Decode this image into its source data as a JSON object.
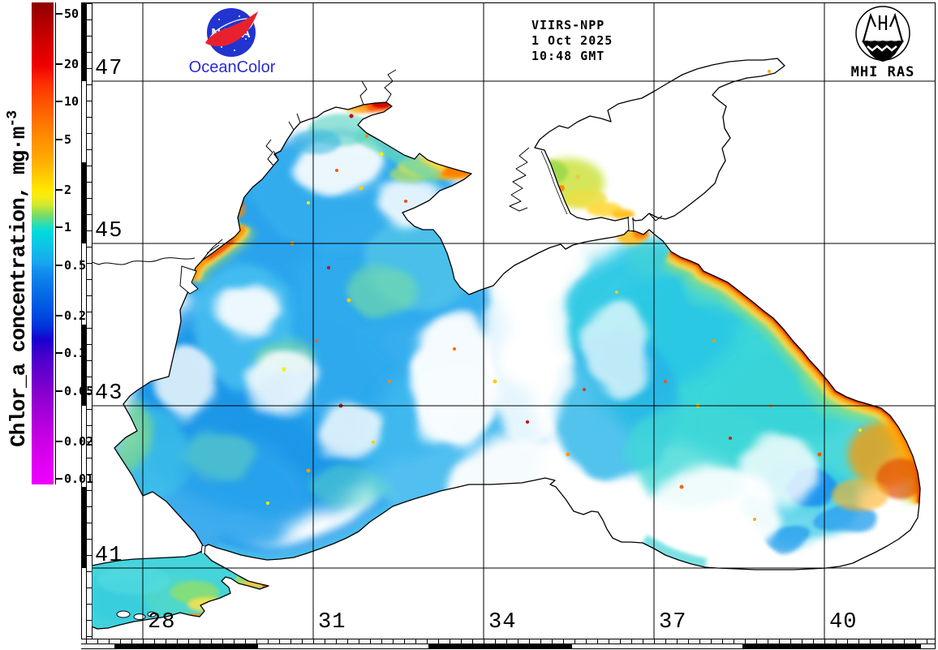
{
  "header": {
    "platform": "VIIRS-NPP",
    "date": "1 Oct 2025",
    "time": "10:48 GMT"
  },
  "branding": {
    "nasa_wordmark": "NASA",
    "oceancolor_label": "OceanColor",
    "mhi_label": "MHI RAS"
  },
  "colorbar": {
    "title": "Chlor_a concentration, mg·m",
    "title_sup": "-3",
    "tick_labels": [
      "50",
      "20",
      "10",
      "5",
      "2",
      "1",
      "0.5",
      "0.2",
      "0.1",
      "0.05",
      "0.02",
      "0.01"
    ]
  },
  "axes": {
    "lat_labels": [
      "47",
      "45",
      "43",
      "41"
    ],
    "lon_labels": [
      "28",
      "31",
      "34",
      "37",
      "40"
    ]
  },
  "colors": {
    "west_basin_blue": "#1f97e8",
    "east_basin_cyan": "#3ad6da",
    "coastal_band_orange": "#ff9100",
    "coastal_band_red": "#dd2800",
    "scale_low_magenta": "#ee00ff",
    "nasa_blue": "#2134cf",
    "swoosh_red": "#e8212e"
  }
}
